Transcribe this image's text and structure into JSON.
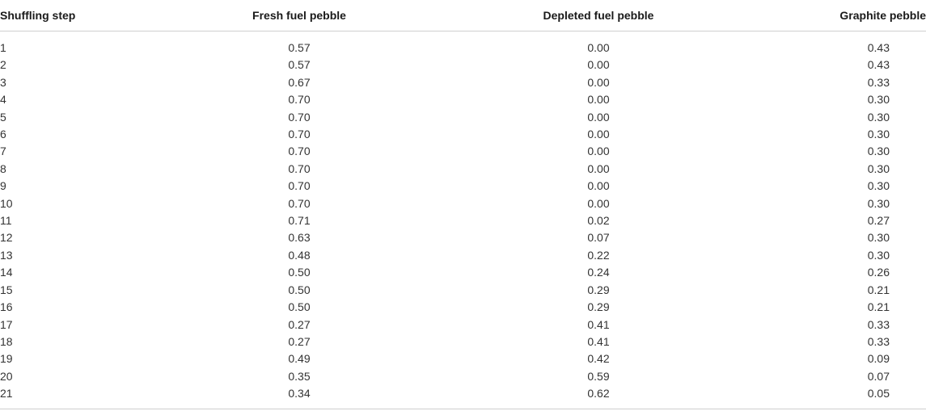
{
  "table": {
    "headers": [
      "Shuffling step",
      "Fresh fuel pebble",
      "Depleted fuel pebble",
      "Graphite pebble"
    ],
    "rows": [
      [
        "1",
        "0.57",
        "0.00",
        "0.43"
      ],
      [
        "2",
        "0.57",
        "0.00",
        "0.43"
      ],
      [
        "3",
        "0.67",
        "0.00",
        "0.33"
      ],
      [
        "4",
        "0.70",
        "0.00",
        "0.30"
      ],
      [
        "5",
        "0.70",
        "0.00",
        "0.30"
      ],
      [
        "6",
        "0.70",
        "0.00",
        "0.30"
      ],
      [
        "7",
        "0.70",
        "0.00",
        "0.30"
      ],
      [
        "8",
        "0.70",
        "0.00",
        "0.30"
      ],
      [
        "9",
        "0.70",
        "0.00",
        "0.30"
      ],
      [
        "10",
        "0.70",
        "0.00",
        "0.30"
      ],
      [
        "11",
        "0.71",
        "0.02",
        "0.27"
      ],
      [
        "12",
        "0.63",
        "0.07",
        "0.30"
      ],
      [
        "13",
        "0.48",
        "0.22",
        "0.30"
      ],
      [
        "14",
        "0.50",
        "0.24",
        "0.26"
      ],
      [
        "15",
        "0.50",
        "0.29",
        "0.21"
      ],
      [
        "16",
        "0.50",
        "0.29",
        "0.21"
      ],
      [
        "17",
        "0.27",
        "0.41",
        "0.33"
      ],
      [
        "18",
        "0.27",
        "0.41",
        "0.33"
      ],
      [
        "19",
        "0.49",
        "0.42",
        "0.09"
      ],
      [
        "20",
        "0.35",
        "0.59",
        "0.07"
      ],
      [
        "21",
        "0.34",
        "0.62",
        "0.05"
      ]
    ]
  },
  "colors": {
    "rule": "#cfcfcf",
    "header_text": "#1a1a1a",
    "cell_text": "#333333"
  }
}
